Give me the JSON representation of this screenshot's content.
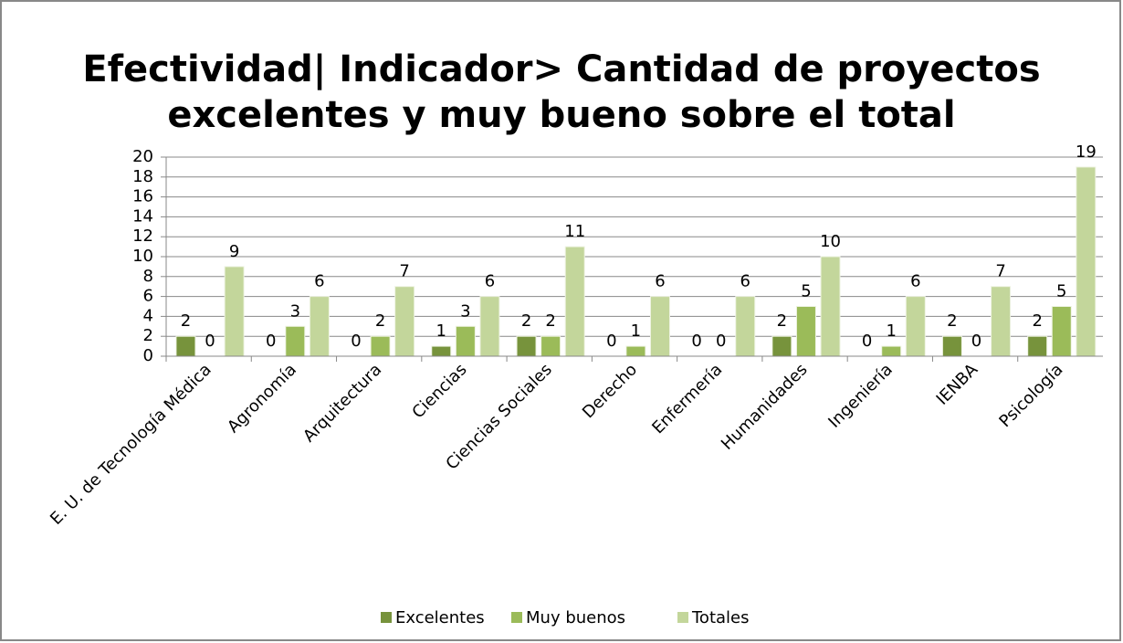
{
  "chart_data": {
    "type": "bar",
    "title": [
      "Efectividad| Indicador> Cantidad de proyectos",
      "excelentes y muy bueno sobre el total"
    ],
    "categories": [
      "E. U. de Tecnología Médica",
      "Agronomía",
      "Arquitectura",
      "Ciencias",
      "Ciencias Sociales",
      "Derecho",
      "Enfermería",
      "Humanidades",
      "Ingeniería",
      "IENBA",
      "Psicología"
    ],
    "series": [
      {
        "name": "Excelentes",
        "color": "#77933c",
        "values": [
          2,
          0,
          0,
          1,
          2,
          0,
          0,
          2,
          0,
          2,
          2
        ]
      },
      {
        "name": "Muy buenos",
        "color": "#9bbb59",
        "values": [
          0,
          3,
          2,
          3,
          2,
          1,
          0,
          5,
          1,
          0,
          5
        ]
      },
      {
        "name": "Totales",
        "color": "#c3d69b",
        "values": [
          9,
          6,
          7,
          6,
          11,
          6,
          6,
          10,
          6,
          7,
          19
        ]
      }
    ],
    "ylim": [
      0,
      20
    ],
    "yticks": [
      0,
      2,
      4,
      6,
      8,
      10,
      12,
      14,
      16,
      18,
      20
    ],
    "grid": true,
    "legend": "bottom"
  }
}
